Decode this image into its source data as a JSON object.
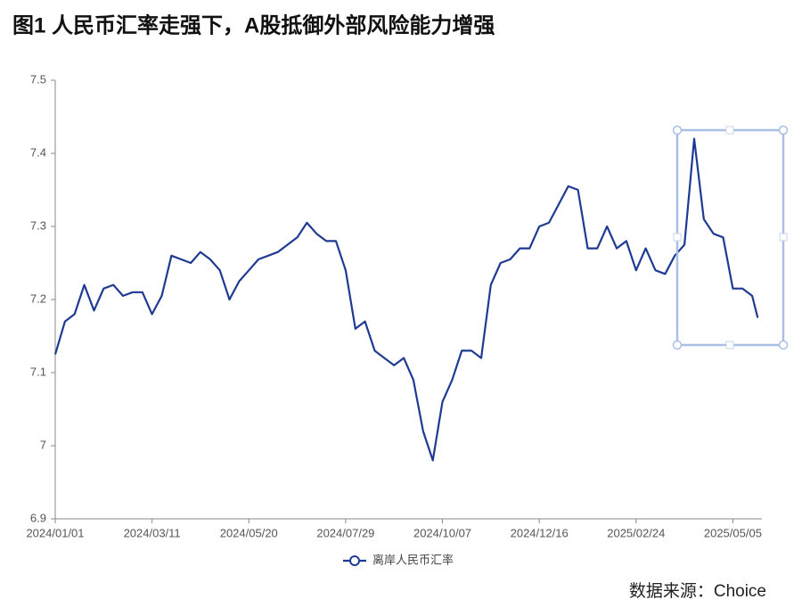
{
  "chart_data": {
    "type": "line",
    "title": "图1  人民币汇率走强下，A股抵御外部风险能力增强",
    "source": "数据来源：Choice",
    "x": [
      "2024/01/01",
      "2024/01/08",
      "2024/01/15",
      "2024/01/22",
      "2024/01/29",
      "2024/02/05",
      "2024/02/12",
      "2024/02/19",
      "2024/02/26",
      "2024/03/04",
      "2024/03/11",
      "2024/03/18",
      "2024/03/25",
      "2024/04/01",
      "2024/04/08",
      "2024/04/15",
      "2024/04/22",
      "2024/04/29",
      "2024/05/06",
      "2024/05/13",
      "2024/05/20",
      "2024/05/27",
      "2024/06/03",
      "2024/06/10",
      "2024/06/17",
      "2024/06/24",
      "2024/07/01",
      "2024/07/08",
      "2024/07/15",
      "2024/07/22",
      "2024/07/29",
      "2024/08/05",
      "2024/08/12",
      "2024/08/19",
      "2024/08/26",
      "2024/09/02",
      "2024/09/09",
      "2024/09/16",
      "2024/09/23",
      "2024/09/30",
      "2024/10/07",
      "2024/10/14",
      "2024/10/21",
      "2024/10/28",
      "2024/11/04",
      "2024/11/11",
      "2024/11/18",
      "2024/11/25",
      "2024/12/02",
      "2024/12/09",
      "2024/12/16",
      "2024/12/23",
      "2024/12/30",
      "2025/01/06",
      "2025/01/13",
      "2025/01/20",
      "2025/01/27",
      "2025/02/03",
      "2025/02/10",
      "2025/02/17",
      "2025/02/24",
      "2025/03/03",
      "2025/03/10",
      "2025/03/17",
      "2025/03/24",
      "2025/03/31",
      "2025/04/07",
      "2025/04/14",
      "2025/04/21",
      "2025/04/28",
      "2025/05/05",
      "2025/05/12",
      "2025/05/19",
      "2025/05/23"
    ],
    "series": [
      {
        "name": "离岸人民币汇率",
        "color": "#1f3a93",
        "values": [
          7.125,
          7.17,
          7.18,
          7.22,
          7.185,
          7.215,
          7.22,
          7.205,
          7.21,
          7.21,
          7.18,
          7.205,
          7.26,
          7.255,
          7.25,
          7.265,
          7.255,
          7.24,
          7.2,
          7.225,
          7.24,
          7.255,
          7.26,
          7.265,
          7.275,
          7.285,
          7.305,
          7.29,
          7.28,
          7.28,
          7.24,
          7.16,
          7.17,
          7.13,
          7.12,
          7.11,
          7.12,
          7.09,
          7.02,
          6.98,
          7.06,
          7.09,
          7.13,
          7.13,
          7.12,
          7.22,
          7.25,
          7.255,
          7.27,
          7.27,
          7.3,
          7.305,
          7.33,
          7.355,
          7.35,
          7.27,
          7.27,
          7.3,
          7.27,
          7.28,
          7.24,
          7.27,
          7.24,
          7.235,
          7.26,
          7.275,
          7.42,
          7.31,
          7.29,
          7.285,
          7.215,
          7.215,
          7.205,
          7.175
        ]
      }
    ],
    "xlim": [
      "2024/01/01",
      "2025/05/26"
    ],
    "xticks": [
      "2024/01/01",
      "2024/03/11",
      "2024/05/20",
      "2024/07/29",
      "2024/10/07",
      "2024/12/16",
      "2025/02/24",
      "2025/05/05"
    ],
    "ylim": [
      6.9,
      7.5
    ],
    "yticks": [
      6.9,
      7,
      7.1,
      7.2,
      7.3,
      7.4,
      7.5
    ]
  }
}
